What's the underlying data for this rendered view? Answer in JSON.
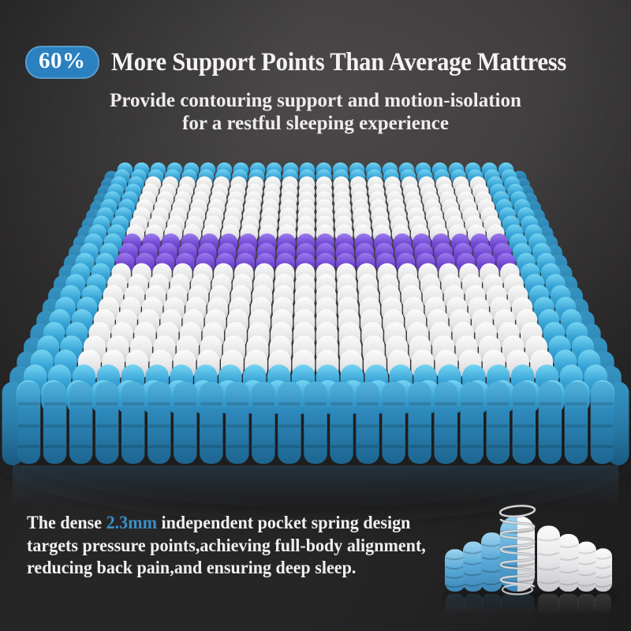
{
  "header": {
    "badge": "60%",
    "title": "More Support Points Than Average Mattress",
    "subtitle_line1": "Provide contouring support and motion-isolation",
    "subtitle_line2": "for a restful sleeping experience"
  },
  "paragraph": {
    "lines": [
      [
        {
          "text": "The dense "
        },
        {
          "text": "2.3mm",
          "highlight": true
        },
        {
          "text": " independent pocket spring design"
        }
      ],
      [
        {
          "text": "targets pressure points,achieving full-body alignment,"
        }
      ],
      [
        {
          "text": "reducing back pain,and ensuring deep sleep."
        }
      ]
    ],
    "highlight_color": "#3b8ec9"
  },
  "colors": {
    "background_top": "#4b494a",
    "background_edge": "#272627",
    "badge_blue": "#2b80c0",
    "text_white": "#f5f3f1",
    "spring_blue_light": "#76d4f2",
    "spring_blue": "#3aa6d8",
    "spring_blue_dark": "#2584b6",
    "spring_white_light": "#fcfcfa",
    "spring_white": "#e6e6e8",
    "spring_white_dark": "#c2c2c8",
    "spring_purple_light": "#9d7cee",
    "spring_purple": "#7349d4",
    "spring_purple_dark": "#5634ac",
    "front_blue_light": "#55b4dc",
    "front_blue": "#2e8abc",
    "front_blue_dark": "#1d6590",
    "coil_silver": "#d6d9dc"
  },
  "mattress_grid": {
    "rows": 22,
    "cols": 24,
    "border_thickness": 2,
    "border_color_name": "blue",
    "interior_color_name": "white",
    "band_color_name": "purple",
    "purple_rows": [
      9,
      10,
      11
    ]
  },
  "spring_detail": {
    "has_coil": true,
    "columns": [
      {
        "color": "blue",
        "height": 0.56
      },
      {
        "color": "blue",
        "height": 0.66
      },
      {
        "color": "blue",
        "height": 0.78
      },
      {
        "color": "blue-white",
        "height": 1.0,
        "coil": true
      },
      {
        "color": "white",
        "height": 0.87
      },
      {
        "color": "white",
        "height": 0.76
      },
      {
        "color": "white",
        "height": 0.66
      },
      {
        "color": "white",
        "height": 0.57
      }
    ]
  }
}
